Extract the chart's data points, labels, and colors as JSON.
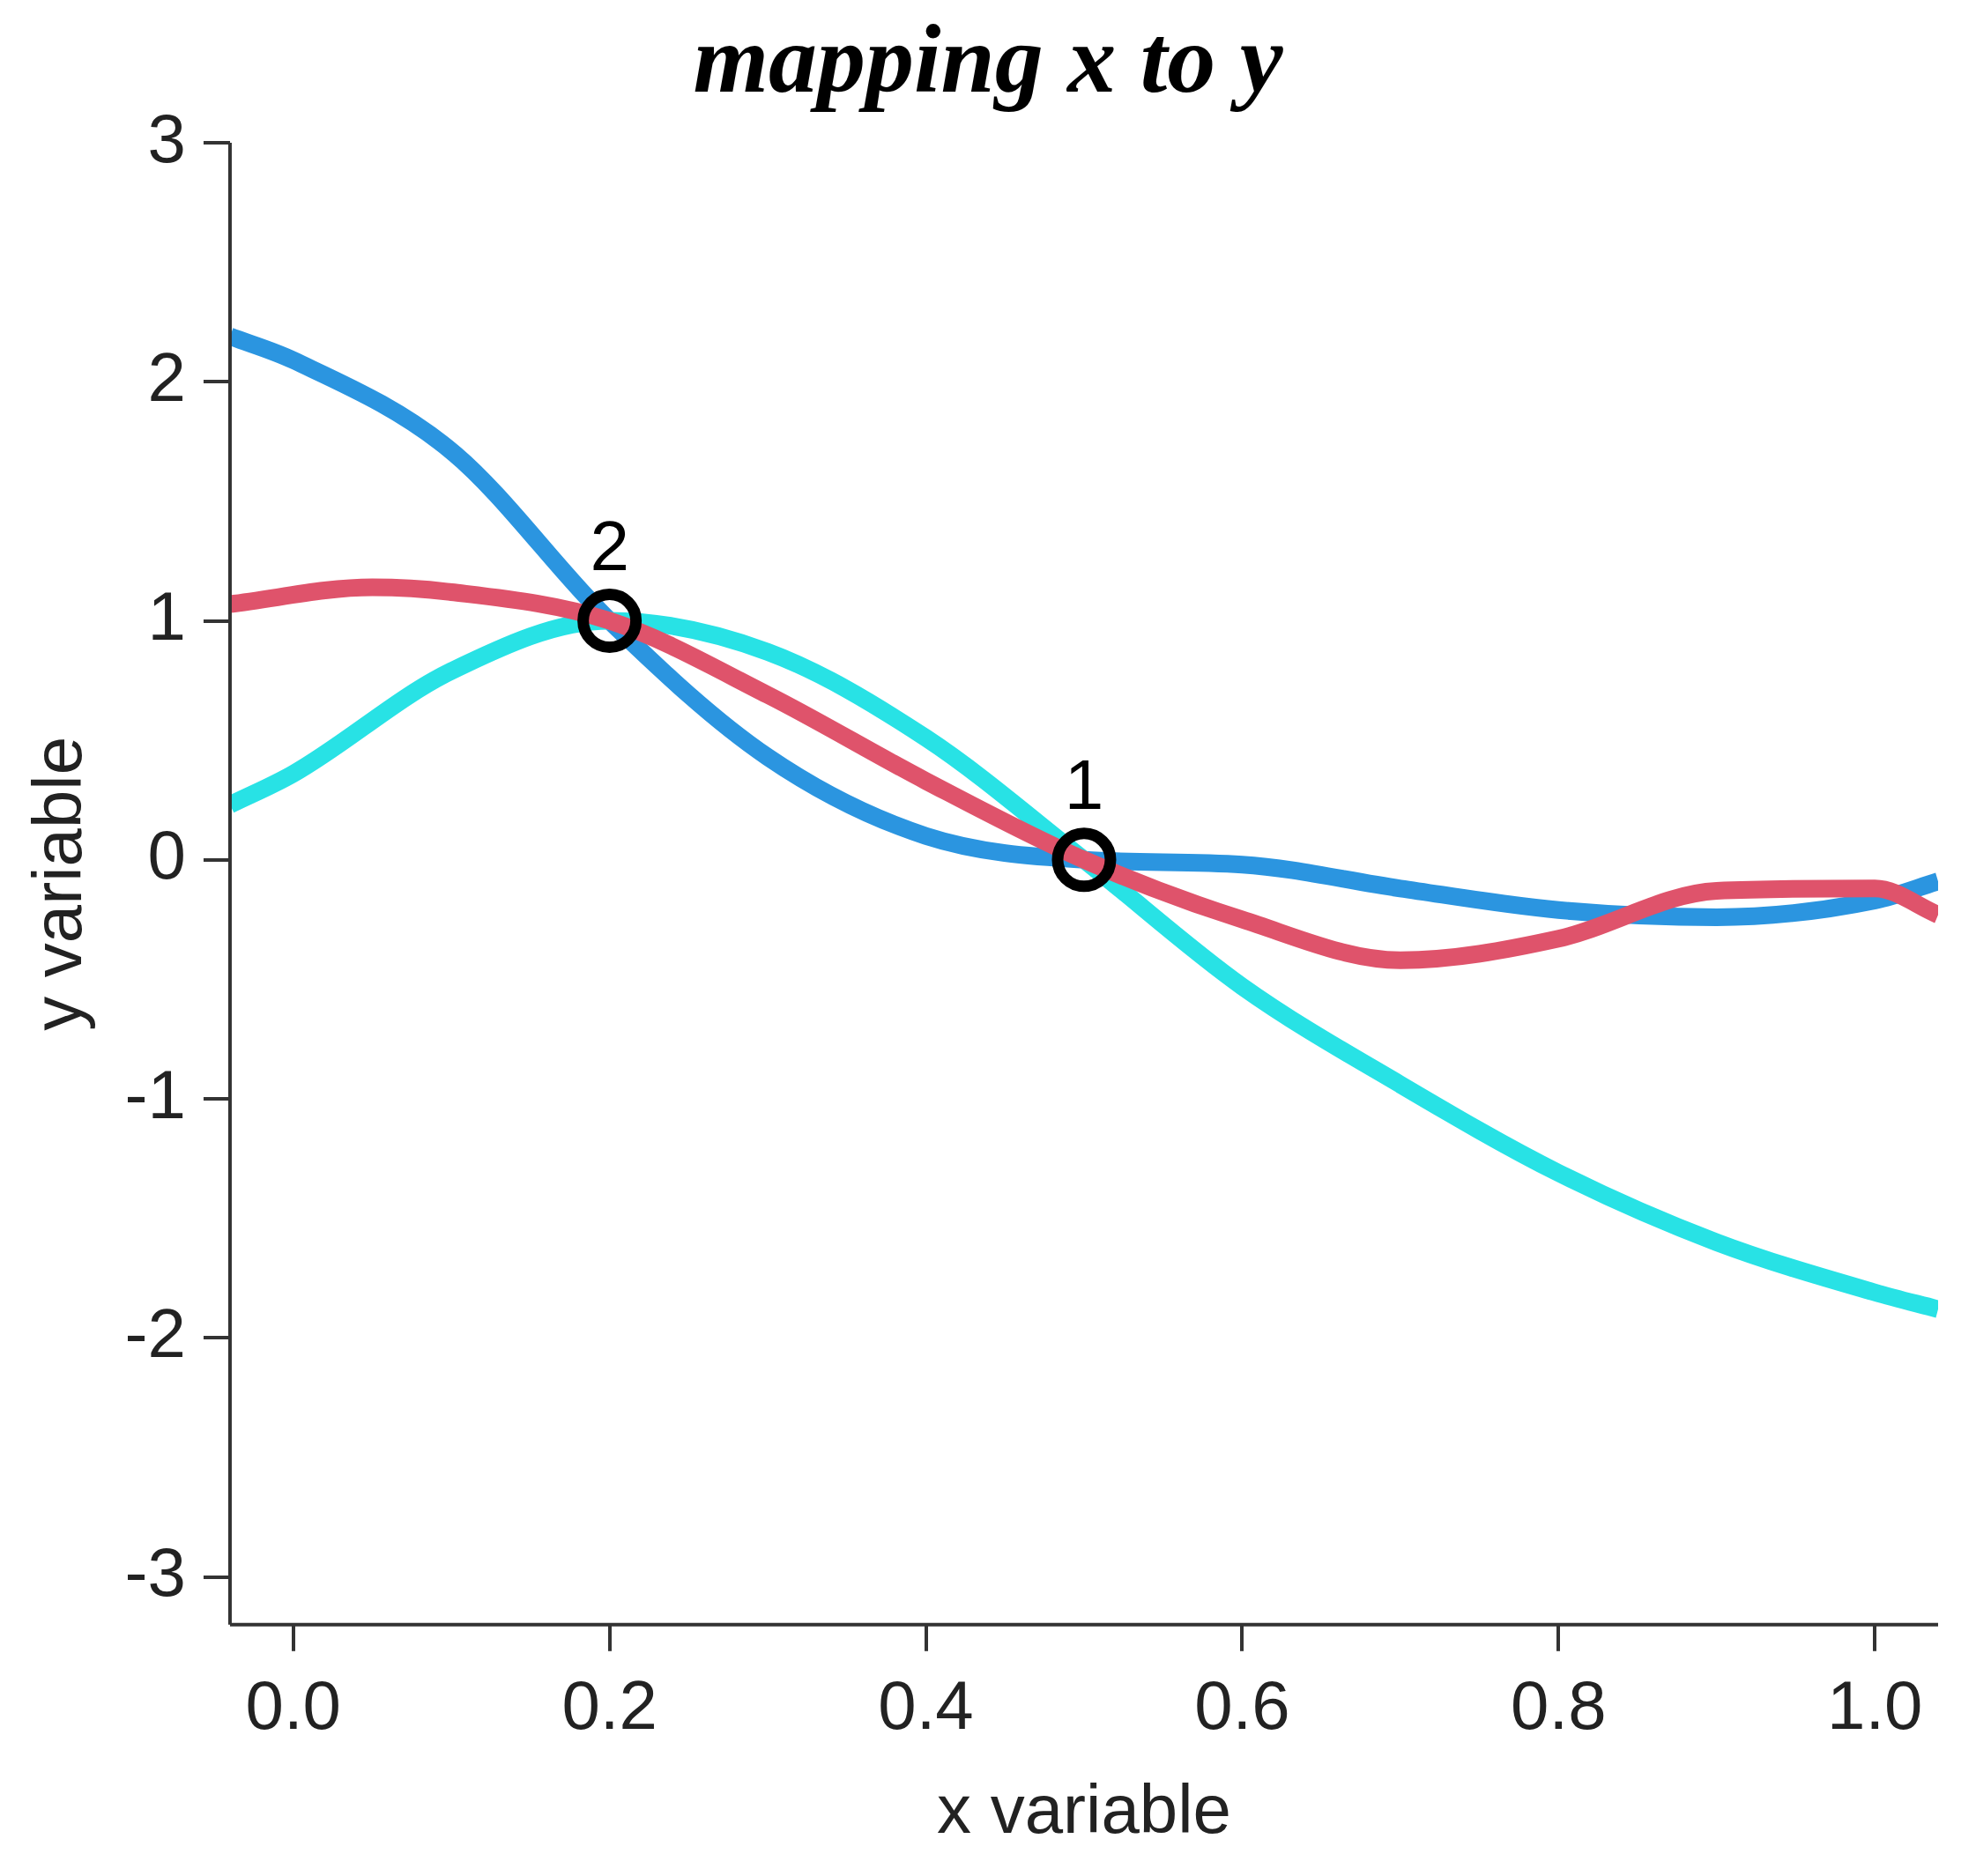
{
  "chart_data": {
    "type": "line",
    "title": "mapping x to y",
    "xlabel": "x variable",
    "ylabel": "y variable",
    "xlim": [
      -0.04,
      1.04
    ],
    "ylim": [
      -3.2,
      3.0
    ],
    "xticks": [
      {
        "value": 0,
        "label": "0.0"
      },
      0.2,
      0.4,
      0.6,
      0.8,
      {
        "value": 1,
        "label": "1.0"
      }
    ],
    "yticks": [
      -3,
      -2,
      -1,
      0,
      1,
      2,
      3
    ],
    "grid": false,
    "legend": false,
    "line_style": "solid",
    "series": [
      {
        "color": "#df536b",
        "x": [
          -0.04,
          0.05,
          0.1,
          0.2,
          0.3,
          0.4,
          0.5,
          0.6,
          0.7,
          0.8,
          0.9,
          1.0,
          1.04
        ],
        "values": [
          1.07,
          1.14,
          1.12,
          1.0,
          0.69,
          0.33,
          0,
          -0.25,
          -0.42,
          -0.33,
          -0.13,
          -0.12,
          -0.23
        ]
      },
      {
        "color": "#28e2e5",
        "x": [
          -0.04,
          0,
          0.1,
          0.2,
          0.3,
          0.4,
          0.5,
          0.6,
          0.7,
          0.8,
          0.9,
          1.0,
          1.04
        ],
        "values": [
          0.23,
          0.36,
          0.79,
          1.0,
          0.87,
          0.51,
          0,
          -0.53,
          -0.94,
          -1.31,
          -1.6,
          -1.81,
          -1.88
        ]
      },
      {
        "color": "#2b95e0",
        "x": [
          -0.04,
          0,
          0.1,
          0.2,
          0.3,
          0.4,
          0.5,
          0.6,
          0.7,
          0.8,
          0.9,
          1.0,
          1.04
        ],
        "values": [
          2.19,
          2.09,
          1.71,
          1.0,
          0.43,
          0.1,
          0,
          -0.02,
          -0.12,
          -0.21,
          -0.24,
          -0.17,
          -0.09
        ]
      },
      {
        "type": "scatter",
        "marker": "circle",
        "color": "#000000",
        "x": [
          0.2,
          0.5
        ],
        "values": [
          1,
          0
        ]
      }
    ],
    "annotations": [
      {
        "text": "2",
        "x": 0.2,
        "y": 1
      },
      {
        "text": "1",
        "x": 0.5,
        "y": 0
      }
    ]
  }
}
